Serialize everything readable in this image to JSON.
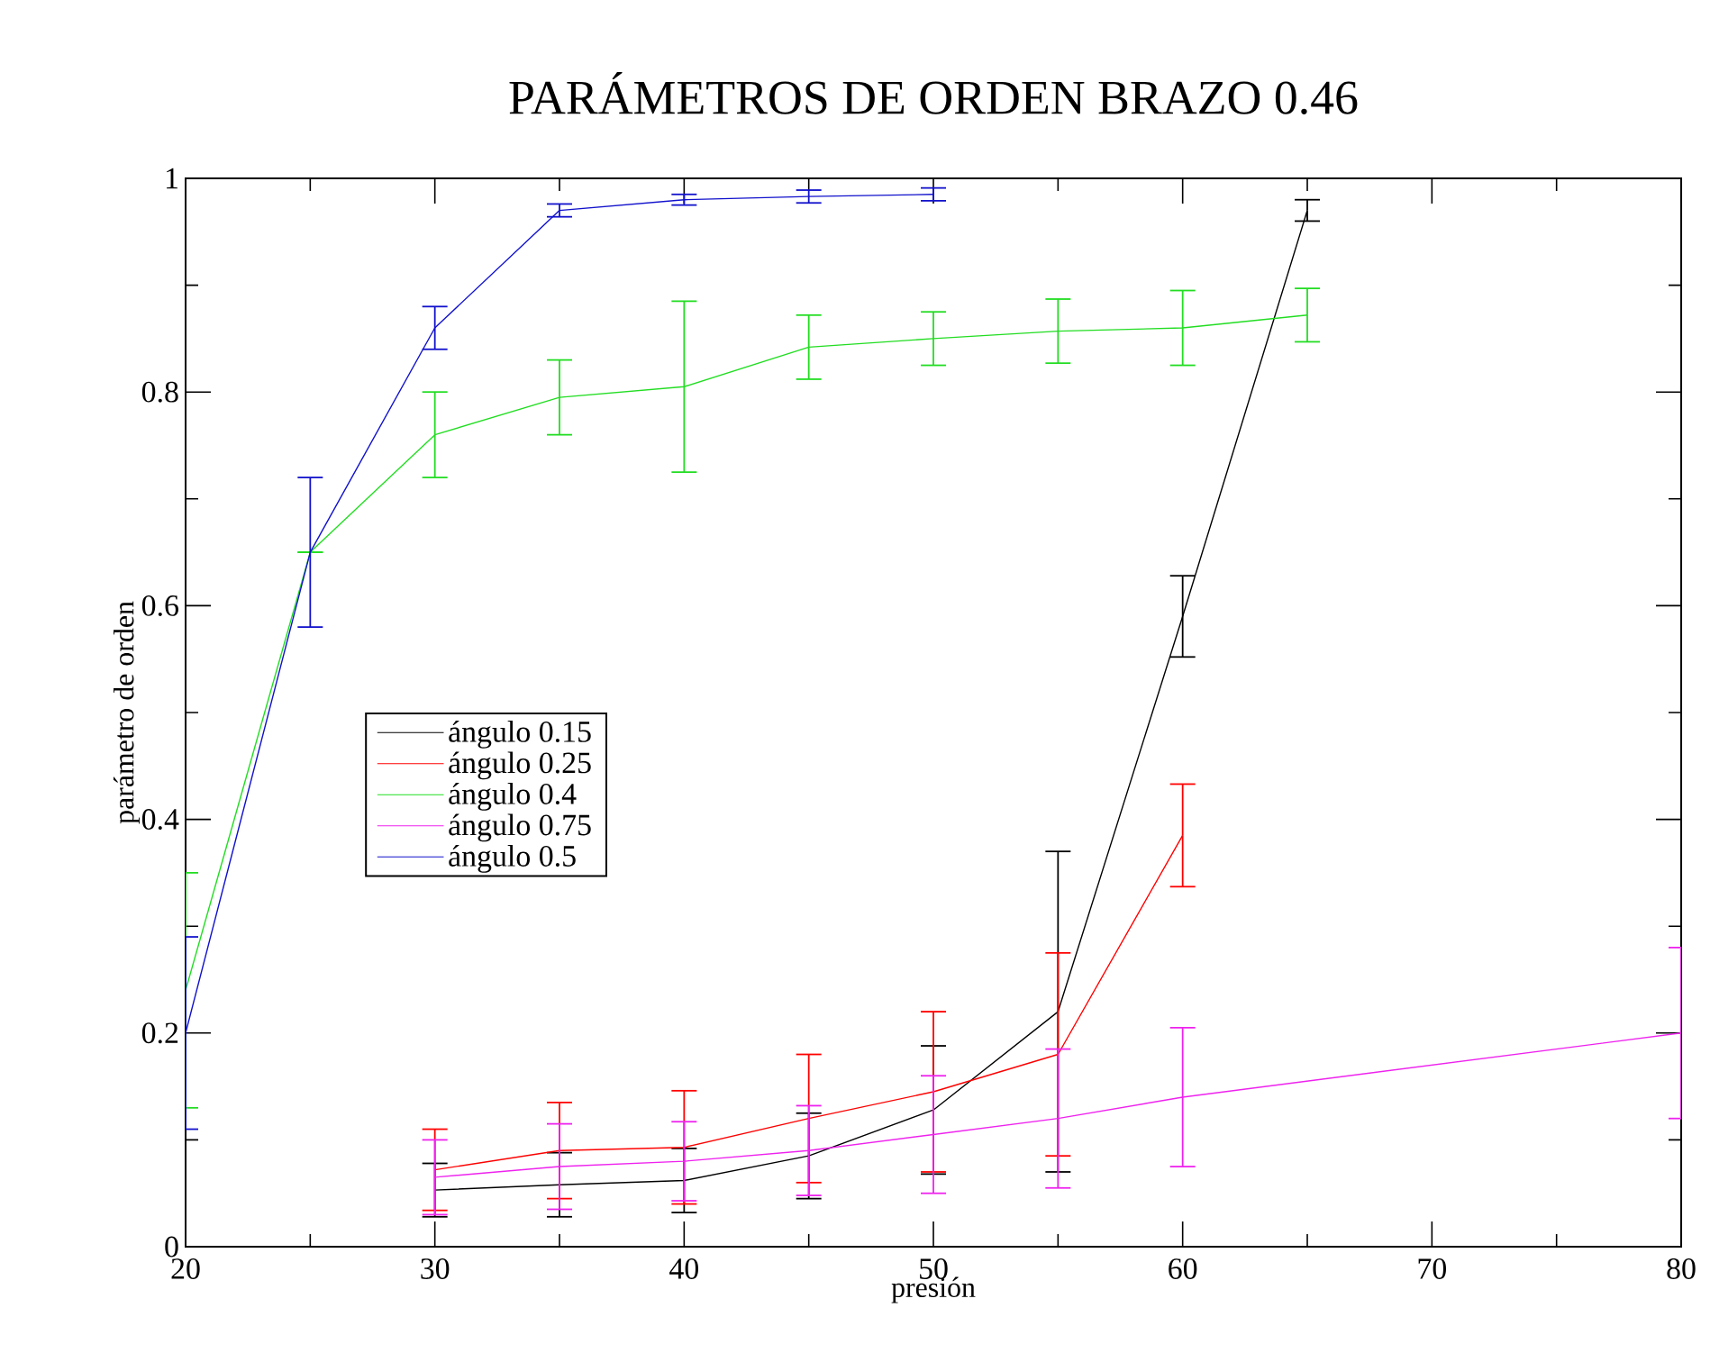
{
  "chart_data": {
    "type": "line",
    "title": "PARÁMETROS DE ORDEN BRAZO 0.46",
    "xlabel": "presión",
    "ylabel": "parámetro de orden",
    "xlim": [
      20,
      80
    ],
    "ylim": [
      0,
      1
    ],
    "xticks": [
      20,
      30,
      40,
      50,
      60,
      70,
      80
    ],
    "yticks": [
      0,
      0.2,
      0.4,
      0.6,
      0.8,
      1
    ],
    "legend": "left",
    "series": [
      {
        "name": "ángulo 0.15",
        "color": "#000000",
        "x": [
          30,
          35,
          40,
          45,
          50,
          55,
          60,
          65
        ],
        "values": [
          0.053,
          0.058,
          0.062,
          0.085,
          0.128,
          0.22,
          0.59,
          0.97
        ],
        "errors": [
          0.025,
          0.03,
          0.03,
          0.04,
          0.06,
          0.15,
          0.038,
          0.01
        ]
      },
      {
        "name": "ángulo 0.25",
        "color": "#ff0000",
        "x": [
          30,
          35,
          40,
          45,
          50,
          55,
          60
        ],
        "values": [
          0.072,
          0.09,
          0.093,
          0.12,
          0.145,
          0.18,
          0.385
        ],
        "errors": [
          0.038,
          0.045,
          0.053,
          0.06,
          0.075,
          0.095,
          0.048
        ]
      },
      {
        "name": "ángulo 0.4",
        "color": "#22dd22",
        "x": [
          20,
          25,
          30,
          35,
          40,
          45,
          50,
          55,
          60,
          65
        ],
        "values": [
          0.24,
          0.65,
          0.76,
          0.795,
          0.805,
          0.842,
          0.85,
          0.857,
          0.86,
          0.872
        ],
        "errors": [
          0.11,
          null,
          0.04,
          0.035,
          0.08,
          0.03,
          0.025,
          0.03,
          0.035,
          0.025
        ]
      },
      {
        "name": "ángulo 0.75",
        "color": "#ee22ee",
        "x": [
          30,
          35,
          40,
          45,
          50,
          55,
          60,
          80
        ],
        "values": [
          0.065,
          0.075,
          0.08,
          0.09,
          0.105,
          0.12,
          0.14,
          0.2
        ],
        "errors": [
          0.035,
          0.04,
          0.037,
          0.042,
          0.055,
          0.065,
          0.065,
          0.08
        ]
      },
      {
        "name": "ángulo 0.5",
        "color": "#1111cc",
        "x": [
          20,
          25,
          30,
          35,
          40,
          45,
          50
        ],
        "values": [
          0.2,
          0.65,
          0.86,
          0.97,
          0.98,
          0.983,
          0.985
        ],
        "errors": [
          0.09,
          0.07,
          0.02,
          0.006,
          0.005,
          0.006,
          0.006
        ]
      }
    ]
  }
}
